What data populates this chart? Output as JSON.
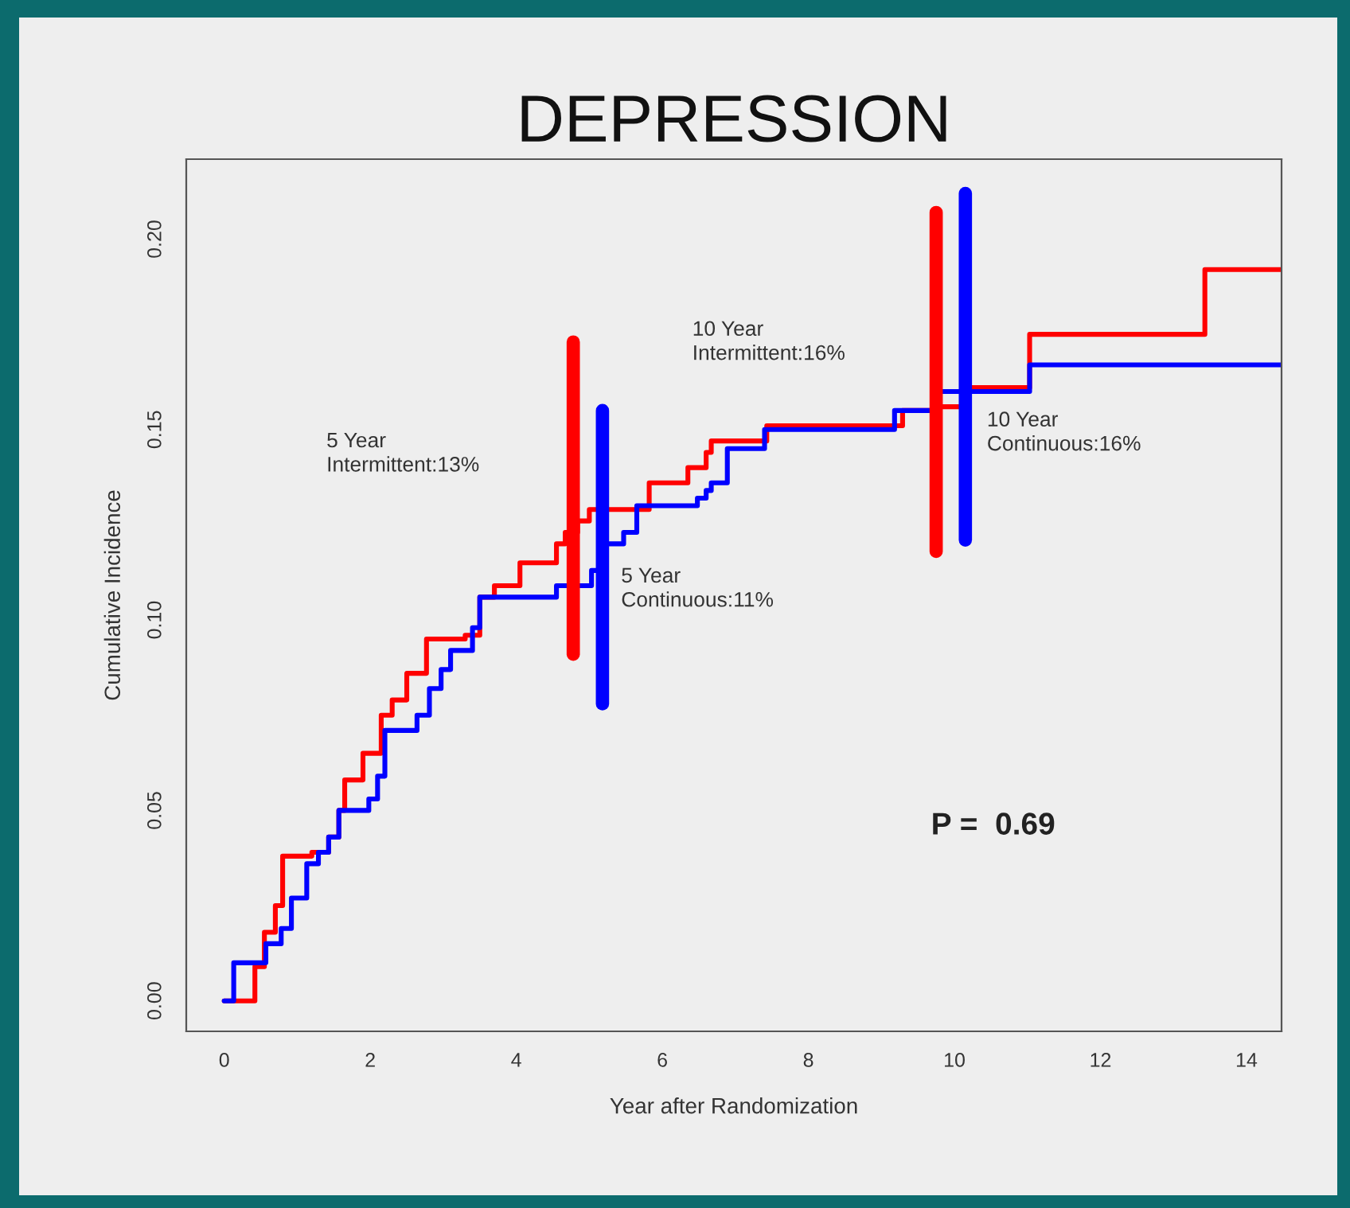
{
  "chart_data": {
    "type": "step",
    "title": "DEPRESSION",
    "xlabel": "Year after Randomization",
    "ylabel": "Cumulative Incidence",
    "xlim": [
      -0.52,
      14.48
    ],
    "xticks": [
      0,
      2,
      4,
      6,
      8,
      10,
      12,
      14
    ],
    "ylim": [
      -0.008,
      0.221
    ],
    "yticks": [
      {
        "value": 0,
        "label": "0.00"
      },
      {
        "value": 0.05,
        "label": "0.05"
      },
      {
        "value": 0.1,
        "label": "0.10"
      },
      {
        "value": 0.15,
        "label": "0.15"
      },
      {
        "value": 0.2,
        "label": "0.20"
      }
    ],
    "grid": false,
    "legend": false,
    "series": [
      {
        "color": "#ff0000",
        "x": [
          0,
          0.42,
          0.55,
          0.7,
          0.8,
          1.2,
          1.43,
          1.57,
          1.65,
          1.9,
          2.15,
          2.3,
          2.5,
          2.77,
          3.3,
          3.5,
          3.7,
          4.05,
          4.55,
          4.67,
          4.84,
          5.0,
          5.82,
          6.35,
          6.6,
          6.67,
          7.43,
          9.29,
          9.72,
          10.2,
          11.03,
          13.43,
          14.48
        ],
        "values": [
          0,
          0.009,
          0.018,
          0.025,
          0.038,
          0.039,
          0.043,
          0.05,
          0.058,
          0.065,
          0.075,
          0.079,
          0.086,
          0.095,
          0.096,
          0.106,
          0.109,
          0.115,
          0.12,
          0.123,
          0.126,
          0.129,
          0.136,
          0.14,
          0.144,
          0.147,
          0.151,
          0.155,
          0.156,
          0.161,
          0.175,
          0.192,
          0.192
        ]
      },
      {
        "color": "#0000ff",
        "x": [
          0,
          0.13,
          0.57,
          0.78,
          0.92,
          1.13,
          1.29,
          1.43,
          1.57,
          1.98,
          2.1,
          2.2,
          2.64,
          2.81,
          2.97,
          3.1,
          3.4,
          3.5,
          4.55,
          5.03,
          5.2,
          5.47,
          5.65,
          6.48,
          6.6,
          6.67,
          6.89,
          7.4,
          9.18,
          9.8,
          11.03,
          14.48
        ],
        "values": [
          0,
          0.01,
          0.015,
          0.019,
          0.027,
          0.036,
          0.039,
          0.043,
          0.05,
          0.053,
          0.059,
          0.071,
          0.075,
          0.082,
          0.087,
          0.092,
          0.098,
          0.106,
          0.109,
          0.113,
          0.12,
          0.123,
          0.13,
          0.132,
          0.134,
          0.136,
          0.145,
          0.15,
          0.155,
          0.16,
          0.167,
          0.167
        ]
      },
      {
        "type": "line",
        "color": "#ff0000",
        "x": [
          4.78,
          4.78
        ],
        "values": [
          0.091,
          0.173
        ]
      },
      {
        "type": "line",
        "color": "#0000ff",
        "x": [
          5.18,
          5.18
        ],
        "values": [
          0.078,
          0.155
        ]
      },
      {
        "type": "line",
        "color": "#ff0000",
        "x": [
          9.75,
          9.75
        ],
        "values": [
          0.118,
          0.207
        ]
      },
      {
        "type": "line",
        "color": "#0000ff",
        "x": [
          10.15,
          10.15
        ],
        "values": [
          0.121,
          0.212
        ]
      }
    ],
    "annotations": [
      "5 Year\nIntermittent:13%",
      "5 Year\nContinuous:11%",
      "10 Year\nIntermittent:16%",
      "10 Year\nContinuous:16%",
      "P =  0.69"
    ]
  }
}
